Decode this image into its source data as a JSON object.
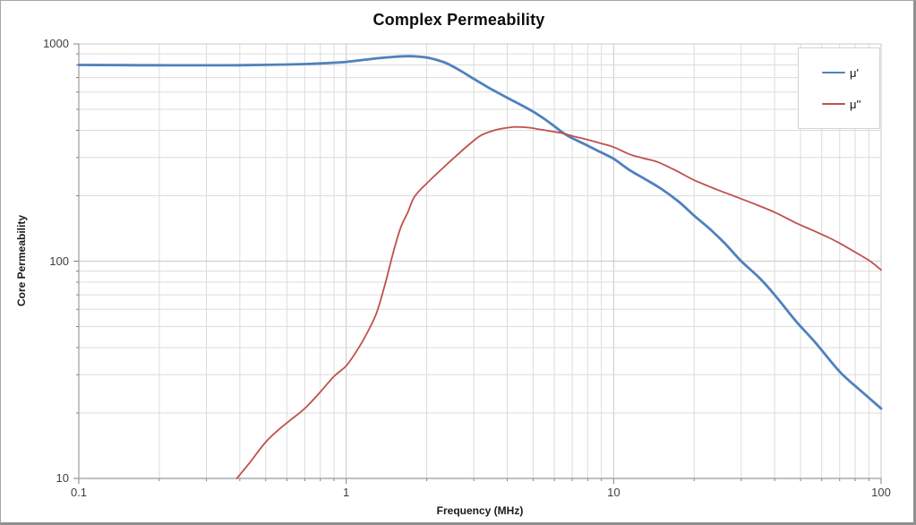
{
  "chart_data": {
    "type": "line",
    "title": "Complex Permeability",
    "xlabel": "Frequency (MHz)",
    "ylabel": "Core Permeability",
    "x_scale": "log",
    "y_scale": "log",
    "xlim": [
      0.1,
      100
    ],
    "ylim": [
      10,
      1000
    ],
    "x_ticks": [
      0.1,
      1,
      10,
      100
    ],
    "x_tick_labels": [
      "0.1",
      "1",
      "10",
      "100"
    ],
    "y_ticks": [
      10,
      100,
      1000
    ],
    "y_tick_labels": [
      "10",
      "100",
      "1000"
    ],
    "grid": "major and minor logarithmic gridlines, light gray, on",
    "legend_position": "inside-top-right",
    "series": [
      {
        "name": "μ'",
        "color": "#4f81bd",
        "stroke_width": 2.8,
        "points": [
          [
            0.1,
            800
          ],
          [
            0.13,
            799
          ],
          [
            0.17,
            798
          ],
          [
            0.22,
            797
          ],
          [
            0.3,
            797
          ],
          [
            0.4,
            798
          ],
          [
            0.5,
            801
          ],
          [
            0.6,
            804
          ],
          [
            0.7,
            808
          ],
          [
            0.8,
            813
          ],
          [
            0.9,
            819
          ],
          [
            1.0,
            826
          ],
          [
            1.15,
            843
          ],
          [
            1.3,
            858
          ],
          [
            1.5,
            871
          ],
          [
            1.7,
            878
          ],
          [
            1.85,
            875
          ],
          [
            2.0,
            866
          ],
          [
            2.2,
            841
          ],
          [
            2.4,
            809
          ],
          [
            2.7,
            747
          ],
          [
            3.0,
            690
          ],
          [
            3.4,
            630
          ],
          [
            3.7,
            595
          ],
          [
            4.0,
            565
          ],
          [
            4.5,
            524
          ],
          [
            5.0,
            488
          ],
          [
            5.5,
            452
          ],
          [
            6.0,
            418
          ],
          [
            6.5,
            388
          ],
          [
            7.0,
            368
          ],
          [
            8.0,
            340
          ],
          [
            9.0,
            316
          ],
          [
            10,
            296
          ],
          [
            11.5,
            262
          ],
          [
            13,
            240
          ],
          [
            15,
            216
          ],
          [
            17.5,
            188
          ],
          [
            20,
            162
          ],
          [
            23,
            140
          ],
          [
            26,
            121
          ],
          [
            30,
            100
          ],
          [
            35,
            84
          ],
          [
            40,
            70
          ],
          [
            48,
            53
          ],
          [
            57,
            42
          ],
          [
            70,
            31
          ],
          [
            85,
            25
          ],
          [
            100,
            21
          ]
        ]
      },
      {
        "name": "μ''",
        "color": "#c0504d",
        "stroke_width": 1.8,
        "points": [
          [
            0.39,
            10
          ],
          [
            0.44,
            12
          ],
          [
            0.5,
            14.7
          ],
          [
            0.56,
            16.8
          ],
          [
            0.62,
            18.6
          ],
          [
            0.7,
            21
          ],
          [
            0.8,
            25
          ],
          [
            0.9,
            29.5
          ],
          [
            1.0,
            33
          ],
          [
            1.1,
            39
          ],
          [
            1.2,
            47
          ],
          [
            1.3,
            58
          ],
          [
            1.4,
            79
          ],
          [
            1.5,
            110
          ],
          [
            1.6,
            143
          ],
          [
            1.7,
            168
          ],
          [
            1.8,
            198
          ],
          [
            2.0,
            228
          ],
          [
            2.2,
            255
          ],
          [
            2.5,
            295
          ],
          [
            2.9,
            347
          ],
          [
            3.2,
            380
          ],
          [
            3.6,
            401
          ],
          [
            4.0,
            411
          ],
          [
            4.3,
            415
          ],
          [
            4.8,
            412
          ],
          [
            5.3,
            404
          ],
          [
            6.0,
            394
          ],
          [
            6.5,
            387
          ],
          [
            7.0,
            377
          ],
          [
            8.0,
            362
          ],
          [
            9.0,
            348
          ],
          [
            10,
            335
          ],
          [
            11.5,
            310
          ],
          [
            13,
            297
          ],
          [
            14.6,
            286
          ],
          [
            17,
            262
          ],
          [
            20,
            236
          ],
          [
            24,
            215
          ],
          [
            28,
            200
          ],
          [
            33,
            185
          ],
          [
            40,
            168
          ],
          [
            48,
            150
          ],
          [
            56,
            138
          ],
          [
            64,
            128
          ],
          [
            70,
            121
          ],
          [
            80,
            110
          ],
          [
            91,
            100
          ],
          [
            100,
            91
          ]
        ]
      }
    ],
    "annotations": {
      "mu_prime_peak": {
        "frequency_mhz": 1.7,
        "value": 878
      },
      "mu_double_prime_peak": {
        "frequency_mhz": 4.3,
        "value": 415
      },
      "crossover": {
        "frequency_mhz": 6.5,
        "value": 388
      }
    }
  },
  "colors": {
    "series_mu_prime": "#4f81bd",
    "series_mu_double_prime": "#c0504d",
    "gridline_minor": "#dcdcdc",
    "gridline_major": "#c9c9c9",
    "axis_line": "#9b9b9b",
    "tick_mark": "#808080",
    "frame_border": "#8f8f8f",
    "background": "#ffffff"
  }
}
